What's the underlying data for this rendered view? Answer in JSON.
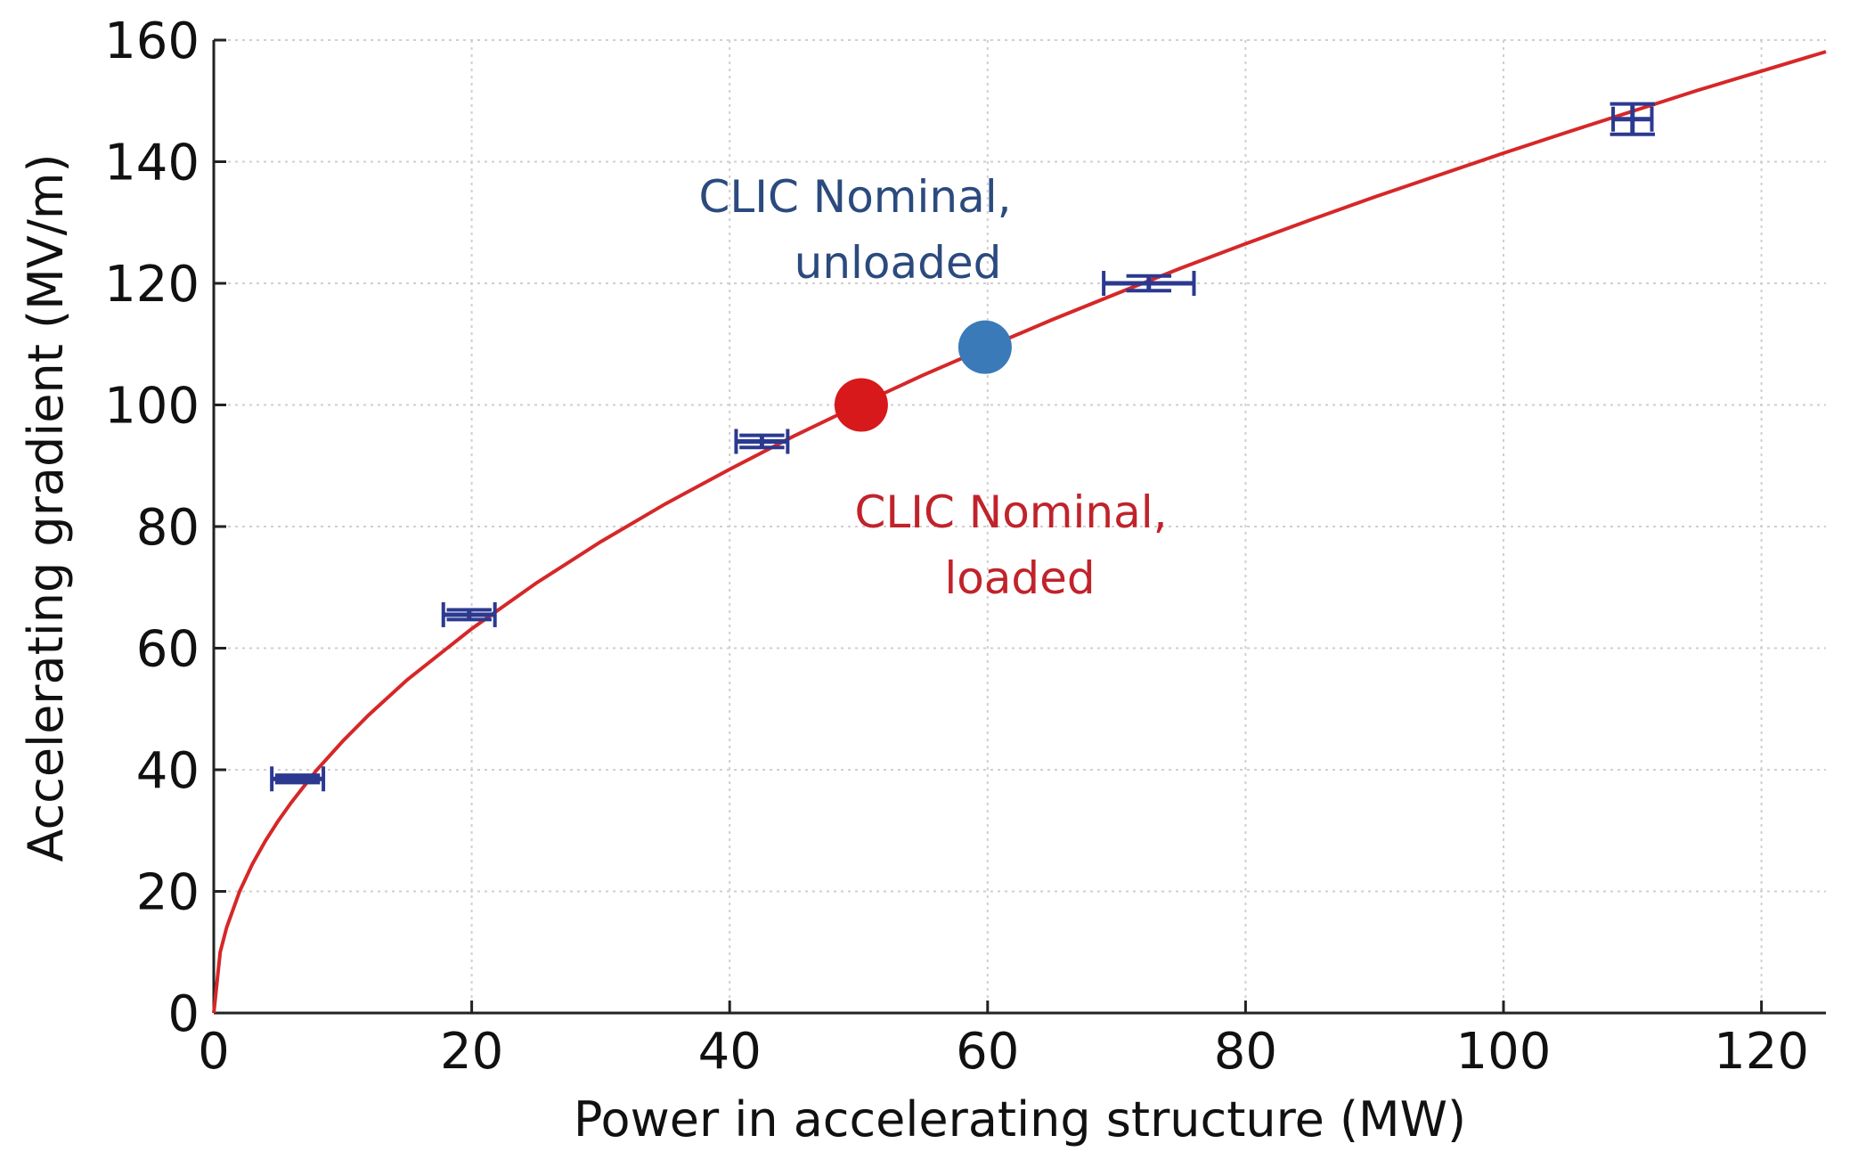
{
  "chart_data": {
    "type": "scatter",
    "xlabel": "Power in accelerating structure (MW)",
    "ylabel": "Accelerating gradient (MV/m)",
    "xlim": [
      0,
      125
    ],
    "ylim": [
      0,
      160
    ],
    "xticks": [
      0,
      20,
      40,
      60,
      80,
      100,
      120
    ],
    "yticks": [
      0,
      20,
      40,
      60,
      80,
      100,
      120,
      140,
      160
    ],
    "grid": true,
    "fit_curve": {
      "color": "#d62728",
      "x": [
        0,
        0.5,
        1,
        2,
        3,
        4,
        5,
        6,
        8,
        10,
        12,
        15,
        20,
        25,
        30,
        35,
        40,
        45,
        50,
        55,
        60,
        65,
        70,
        75,
        80,
        85,
        90,
        95,
        100,
        105,
        110,
        115,
        120,
        125
      ],
      "y": [
        0,
        10.0,
        14.1,
        20.0,
        24.5,
        28.3,
        31.6,
        34.6,
        40.0,
        44.7,
        49.0,
        54.8,
        63.2,
        70.7,
        77.5,
        83.7,
        89.4,
        94.9,
        100.0,
        104.9,
        109.5,
        114.0,
        118.3,
        122.5,
        126.5,
        130.4,
        134.2,
        137.8,
        141.4,
        144.9,
        148.3,
        151.7,
        154.9,
        158.1
      ]
    },
    "measurements": {
      "color": "#2b3990",
      "points": [
        {
          "x": 6.5,
          "y": 38.5,
          "xerr": 2.0,
          "yerr": 0.6
        },
        {
          "x": 19.8,
          "y": 65.5,
          "xerr": 2.0,
          "yerr": 0.8
        },
        {
          "x": 42.5,
          "y": 94.0,
          "xerr": 2.0,
          "yerr": 1.0
        },
        {
          "x": 72.5,
          "y": 120.0,
          "xerr": 3.5,
          "yerr": 1.2
        },
        {
          "x": 110.0,
          "y": 147.0,
          "xerr": 1.5,
          "yerr": 2.5
        }
      ]
    },
    "highlights": [
      {
        "x": 50.2,
        "y": 100.0,
        "color": "#d7191c"
      },
      {
        "x": 59.8,
        "y": 109.5,
        "color": "#3a7ab8"
      }
    ],
    "annotations": [
      {
        "line1": "CLIC Nominal,",
        "line2": "unloaded",
        "color": "#2b4a7e"
      },
      {
        "line1": "CLIC Nominal,",
        "line2": "loaded",
        "color": "#c0232b"
      }
    ]
  }
}
